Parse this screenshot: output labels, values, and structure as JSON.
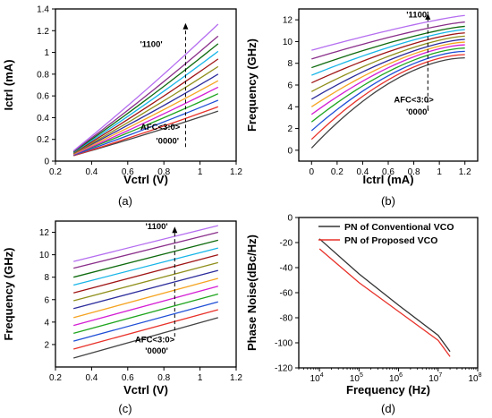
{
  "chart_data": [
    {
      "id": "a",
      "type": "line",
      "panel_label": "(a)",
      "xlabel": "Vctrl (V)",
      "ylabel": "Ictrl (mA)",
      "xlim": [
        0.2,
        1.2
      ],
      "ylim": [
        0.0,
        1.4
      ],
      "xticks": [
        0.2,
        0.4,
        0.6,
        0.8,
        1.0,
        1.2
      ],
      "yticks": [
        0.0,
        0.2,
        0.4,
        0.6,
        0.8,
        1.0,
        1.2,
        1.4
      ],
      "x": [
        0.3,
        1.1
      ],
      "annotations": [
        {
          "text": "'1100'",
          "x": 0.73,
          "y": 1.05
        },
        {
          "text": "AFC<3:0>",
          "x": 0.78,
          "y": 0.29
        },
        {
          "text": "'0000'",
          "x": 0.82,
          "y": 0.16
        }
      ],
      "arrow": {
        "x": 0.92,
        "y_from": 0.13,
        "y_to": 1.27
      },
      "series": [
        {
          "y": [
            0.05,
            0.46
          ]
        },
        {
          "y": [
            0.05,
            0.5
          ]
        },
        {
          "y": [
            0.055,
            0.56
          ]
        },
        {
          "y": [
            0.06,
            0.62
          ]
        },
        {
          "y": [
            0.06,
            0.68
          ]
        },
        {
          "y": [
            0.065,
            0.74
          ]
        },
        {
          "y": [
            0.07,
            0.8
          ]
        },
        {
          "y": [
            0.07,
            0.87
          ]
        },
        {
          "y": [
            0.075,
            0.94
          ]
        },
        {
          "y": [
            0.08,
            1.01
          ]
        },
        {
          "y": [
            0.085,
            1.08
          ]
        },
        {
          "y": [
            0.09,
            1.15
          ]
        },
        {
          "y": [
            0.095,
            1.26
          ]
        }
      ]
    },
    {
      "id": "b",
      "type": "line",
      "panel_label": "(b)",
      "xlabel": "Ictrl (mA)",
      "ylabel": "Frequency (GHz)",
      "xlim": [
        -0.1,
        1.3
      ],
      "ylim": [
        -1,
        13
      ],
      "xticks": [
        0.0,
        0.2,
        0.4,
        0.6,
        0.8,
        1.0,
        1.2
      ],
      "yticks": [
        0,
        2,
        4,
        6,
        8,
        10,
        12
      ],
      "x": [
        0.0,
        1.2
      ],
      "annotations": [
        {
          "text": "'1100'",
          "x": 0.83,
          "y": 12.2
        },
        {
          "text": "AFC<3:0>",
          "x": 0.8,
          "y": 4.4
        },
        {
          "text": "'0000'",
          "x": 0.83,
          "y": 3.3
        }
      ],
      "arrow": {
        "x": 0.91,
        "y_from": 3.8,
        "y_to": 12.6
      },
      "series": [
        {
          "y": [
            0.2,
            8.5
          ]
        },
        {
          "y": [
            1.0,
            8.8
          ]
        },
        {
          "y": [
            1.8,
            9.1
          ]
        },
        {
          "y": [
            2.6,
            9.4
          ]
        },
        {
          "y": [
            3.3,
            9.7
          ]
        },
        {
          "y": [
            4.0,
            9.95
          ]
        },
        {
          "y": [
            4.7,
            10.2
          ]
        },
        {
          "y": [
            5.4,
            10.5
          ]
        },
        {
          "y": [
            6.2,
            10.8
          ]
        },
        {
          "y": [
            6.9,
            11.1
          ]
        },
        {
          "y": [
            7.6,
            11.4
          ]
        },
        {
          "y": [
            8.4,
            11.8
          ]
        },
        {
          "y": [
            9.2,
            12.4
          ]
        }
      ]
    },
    {
      "id": "c",
      "type": "line",
      "panel_label": "(c)",
      "xlabel": "Vctrl (V)",
      "ylabel": "Frequency (GHz)",
      "xlim": [
        0.2,
        1.2
      ],
      "ylim": [
        0,
        13
      ],
      "xticks": [
        0.2,
        0.4,
        0.6,
        0.8,
        1.0,
        1.2
      ],
      "yticks": [
        2,
        4,
        6,
        8,
        10,
        12
      ],
      "x": [
        0.3,
        1.1
      ],
      "annotations": [
        {
          "text": "'1100'",
          "x": 0.76,
          "y": 12.3
        },
        {
          "text": "AFC<3:0>",
          "x": 0.75,
          "y": 2.2
        },
        {
          "text": "'0000'",
          "x": 0.76,
          "y": 1.2
        }
      ],
      "arrow": {
        "x": 0.86,
        "y_from": 2.7,
        "y_to": 12.5
      },
      "series": [
        {
          "y": [
            0.8,
            4.4
          ]
        },
        {
          "y": [
            1.6,
            5.1
          ]
        },
        {
          "y": [
            2.3,
            5.8
          ]
        },
        {
          "y": [
            3.0,
            6.5
          ]
        },
        {
          "y": [
            3.7,
            7.2
          ]
        },
        {
          "y": [
            4.4,
            7.9
          ]
        },
        {
          "y": [
            5.2,
            8.6
          ]
        },
        {
          "y": [
            5.9,
            9.3
          ]
        },
        {
          "y": [
            6.6,
            10.0
          ]
        },
        {
          "y": [
            7.3,
            10.6
          ]
        },
        {
          "y": [
            8.0,
            11.3
          ]
        },
        {
          "y": [
            8.8,
            12.0
          ]
        },
        {
          "y": [
            9.4,
            12.6
          ]
        }
      ]
    },
    {
      "id": "d",
      "type": "line",
      "panel_label": "(d)",
      "xlabel": "Frequency (Hz)",
      "ylabel": "Phase Noise(dBc/Hz)",
      "xscale": "log",
      "xlim": [
        3000,
        100000000
      ],
      "ylim": [
        -120,
        0
      ],
      "xticks": [
        10000,
        100000,
        1000000,
        10000000,
        100000000
      ],
      "xtick_labels": [
        {
          "base": "10",
          "exp": "4"
        },
        {
          "base": "10",
          "exp": "5"
        },
        {
          "base": "10",
          "exp": "6"
        },
        {
          "base": "10",
          "exp": "7"
        },
        {
          "base": "10",
          "exp": "8"
        }
      ],
      "yticks": [
        -120,
        -100,
        -80,
        -60,
        -40,
        -20,
        0
      ],
      "legend_position": "top-right",
      "series": [
        {
          "name": "PN of Conventional VCO",
          "color": "#333333",
          "x": [
            10000,
            100000,
            1000000,
            10000000,
            20000000
          ],
          "y": [
            -17,
            -45,
            -70,
            -94,
            -107
          ]
        },
        {
          "name": "PN of Proposed VCO",
          "color": "#e8322a",
          "x": [
            10000,
            100000,
            1000000,
            10000000,
            20000000
          ],
          "y": [
            -25,
            -52,
            -75,
            -98,
            -111
          ]
        }
      ]
    }
  ],
  "palette": [
    "#444444",
    "#e8322a",
    "#1f4fd6",
    "#1fa51f",
    "#d41ed4",
    "#f5a422",
    "#2c2c9c",
    "#8f8f1c",
    "#a01515",
    "#17b5e8",
    "#0f6b0f",
    "#8a2f8a",
    "#b56ef0"
  ]
}
